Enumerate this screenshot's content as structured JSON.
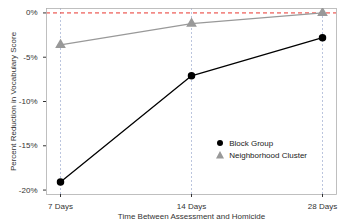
{
  "chart_data": {
    "type": "line",
    "x_label": "Time Between Assessment and Homicide",
    "y_label": "Percent Reduction in Vocabulary Score",
    "categories": [
      "7 Days",
      "14 Days",
      "28 Days"
    ],
    "series": [
      {
        "name": "Block Group",
        "color": "#000000",
        "marker": "circle",
        "values": [
          -19.1,
          -7.1,
          -2.8
        ]
      },
      {
        "name": "Neighborhood Cluster",
        "color": "#999999",
        "marker": "triangle",
        "values": [
          -3.6,
          -1.2,
          0
        ]
      }
    ],
    "ylim": [
      -20.5,
      0.5
    ],
    "yticks": [
      {
        "value": 0,
        "label": "0%"
      },
      {
        "value": -5,
        "label": "-5%"
      },
      {
        "value": -10,
        "label": "-10%"
      },
      {
        "value": -15,
        "label": "-15%"
      },
      {
        "value": -20,
        "label": "-20%"
      }
    ],
    "reference_lines": [
      {
        "y": 0,
        "color": "#e8352e",
        "line_style": "dashed"
      }
    ],
    "grid": "x",
    "legend": "bottom-right"
  }
}
